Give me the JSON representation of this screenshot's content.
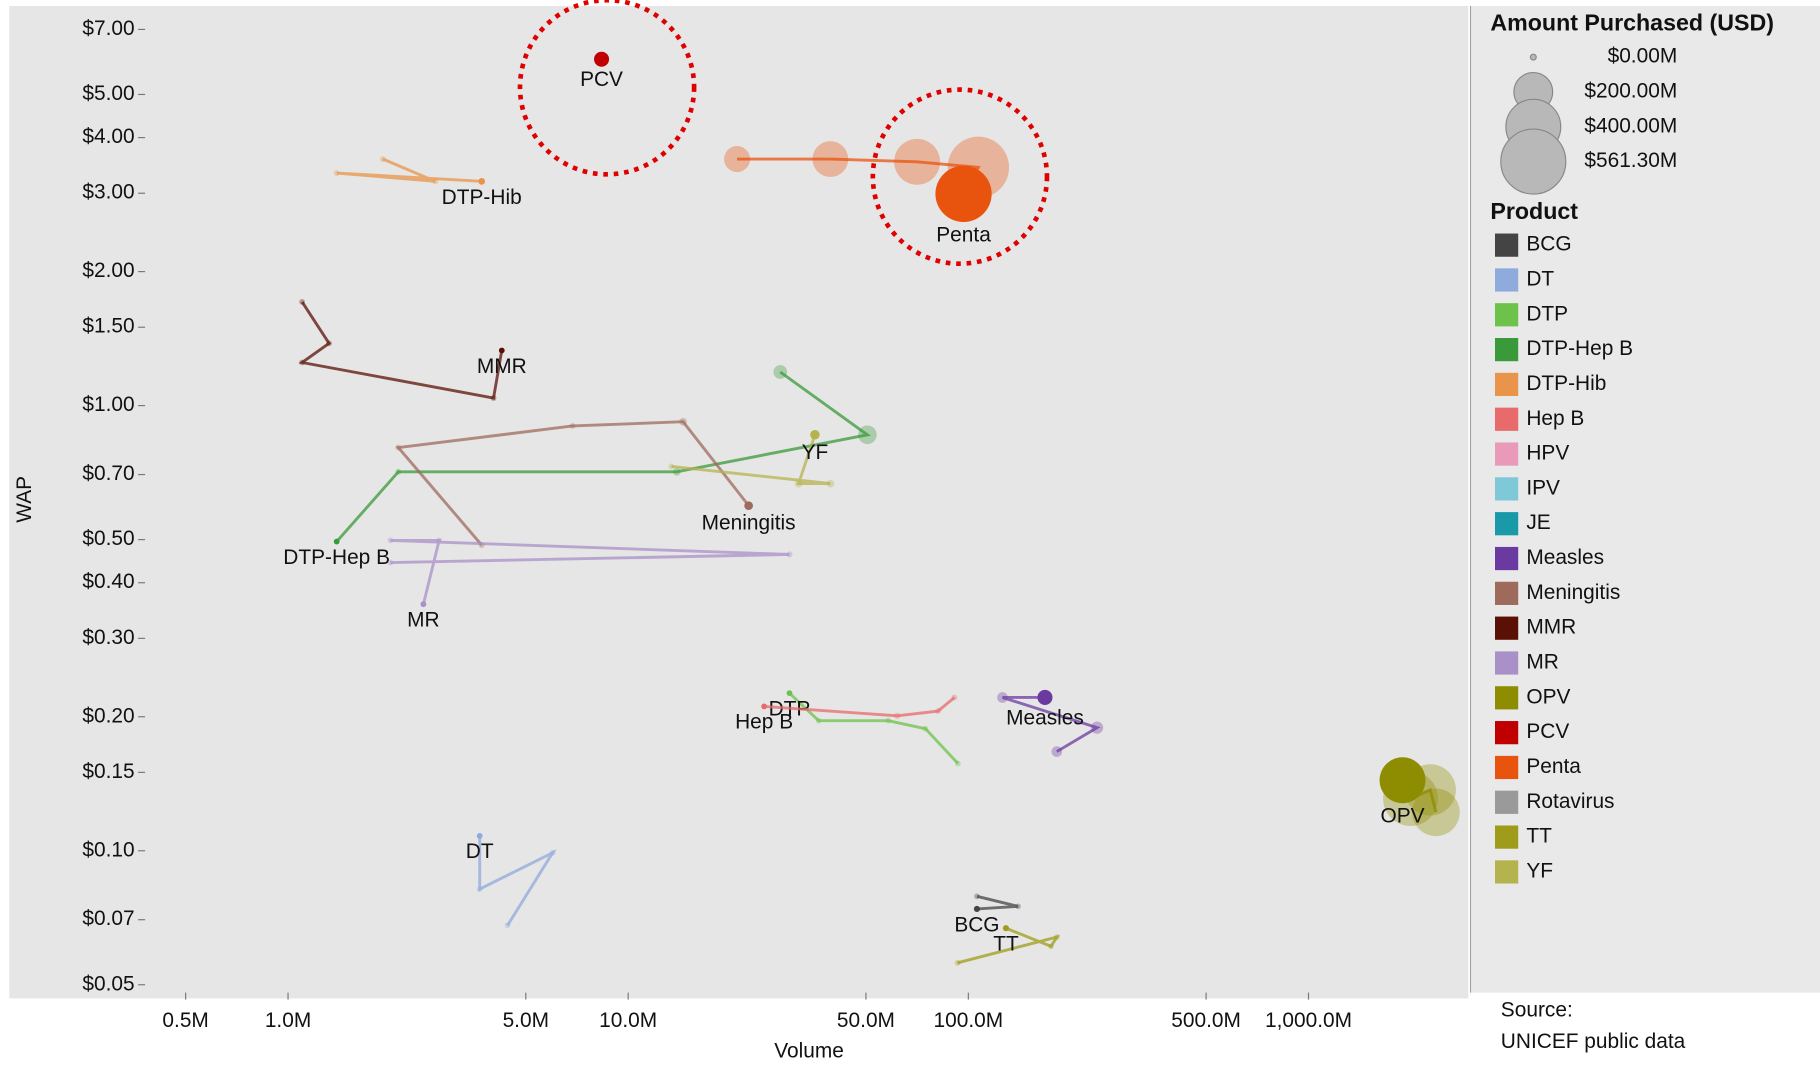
{
  "chart_data": {
    "type": "scatter",
    "x_label": "Volume",
    "y_label": "WAP",
    "x_log": true,
    "y_log": true,
    "xlim": [
      0.38,
      2950
    ],
    "ylim": [
      0.048,
      7.9
    ],
    "xticks": [
      {
        "value": 0.5,
        "label": "0.5M"
      },
      {
        "value": 1,
        "label": "1.0M"
      },
      {
        "value": 5,
        "label": "5.0M"
      },
      {
        "value": 10,
        "label": "10.0M"
      },
      {
        "value": 50,
        "label": "50.0M"
      },
      {
        "value": 100,
        "label": "100.0M"
      },
      {
        "value": 500,
        "label": "500.0M"
      },
      {
        "value": 1000,
        "label": "1,000.0M"
      }
    ],
    "yticks": [
      {
        "value": 0.05,
        "label": "$0.05"
      },
      {
        "value": 0.07,
        "label": "$0.07"
      },
      {
        "value": 0.1,
        "label": "$0.10"
      },
      {
        "value": 0.15,
        "label": "$0.15"
      },
      {
        "value": 0.2,
        "label": "$0.20"
      },
      {
        "value": 0.3,
        "label": "$0.30"
      },
      {
        "value": 0.4,
        "label": "$0.40"
      },
      {
        "value": 0.5,
        "label": "$0.50"
      },
      {
        "value": 0.7,
        "label": "$0.70"
      },
      {
        "value": 1,
        "label": "$1.00"
      },
      {
        "value": 1.5,
        "label": "$1.50"
      },
      {
        "value": 2,
        "label": "$2.00"
      },
      {
        "value": 3,
        "label": "$3.00"
      },
      {
        "value": 4,
        "label": "$4.00"
      },
      {
        "value": 5,
        "label": "$5.00"
      },
      {
        "value": 7,
        "label": "$7.00"
      }
    ],
    "size_legend_title": "Amount Purchased (USD)",
    "size_legend": [
      {
        "value": 0,
        "label": "$0.00M"
      },
      {
        "value": 200,
        "label": "$200.00M"
      },
      {
        "value": 400,
        "label": "$400.00M"
      },
      {
        "value": 561.3,
        "label": "$561.30M"
      }
    ],
    "legend_title": "Product",
    "source": [
      "Source:",
      "UNICEF public data"
    ],
    "series": [
      {
        "name": "BCG",
        "color": "#444444",
        "x": [
          106,
          140,
          106
        ],
        "values": [
          0.079,
          0.075,
          0.074
        ],
        "sizes": [
          4,
          4,
          5
        ]
      },
      {
        "name": "DT",
        "color": "#8faadc",
        "x": [
          4.42,
          6.0,
          3.66,
          3.66
        ],
        "values": [
          0.068,
          0.099,
          0.082,
          0.108
        ],
        "sizes": [
          2,
          2,
          2,
          2
        ]
      },
      {
        "name": "DTP",
        "color": "#6cc24a",
        "x": [
          93.2,
          74.8,
          58.1,
          36.3,
          29.8
        ],
        "values": [
          0.157,
          0.188,
          0.196,
          0.196,
          0.226
        ],
        "sizes": [
          3,
          3,
          3,
          3,
          4
        ]
      },
      {
        "name": "DTP-Hep B",
        "color": "#3a9a3a",
        "x": [
          28,
          50.5,
          13.9,
          2.11,
          1.39
        ],
        "values": [
          1.19,
          0.86,
          0.71,
          0.71,
          0.495
        ],
        "sizes": [
          25,
          46,
          8,
          2,
          2
        ]
      },
      {
        "name": "DTP-Hib",
        "color": "#e8944a",
        "x": [
          1.9,
          2.71,
          1.39,
          3.71
        ],
        "values": [
          3.58,
          3.19,
          3.33,
          3.19
        ],
        "sizes": [
          3,
          5,
          2,
          6
        ]
      },
      {
        "name": "Hep B",
        "color": "#e86a6a",
        "x": [
          91,
          81.5,
          61.8,
          25.1
        ],
        "values": [
          0.221,
          0.206,
          0.201,
          0.211
        ],
        "sizes": [
          3,
          4,
          5,
          4
        ]
      },
      {
        "name": "HPV",
        "color": "#e89ab8",
        "x": [],
        "values": [],
        "sizes": []
      },
      {
        "name": "IPV",
        "color": "#7ec8d8",
        "x": [],
        "values": [],
        "sizes": []
      },
      {
        "name": "JE",
        "color": "#1a9aa8",
        "x": [],
        "values": [],
        "sizes": []
      },
      {
        "name": "Measles",
        "color": "#6b3aa0",
        "x": [
          182,
          239,
          126,
          168
        ],
        "values": [
          0.167,
          0.189,
          0.221,
          0.221
        ],
        "sizes": [
          15,
          20,
          15,
          30
        ]
      },
      {
        "name": "Meningitis",
        "color": "#9e6a5c",
        "x": [
          3.71,
          2.11,
          6.86,
          14.5,
          22.6
        ],
        "values": [
          0.486,
          0.805,
          0.9,
          0.92,
          0.596
        ],
        "sizes": [
          2,
          2,
          4,
          8,
          10
        ]
      },
      {
        "name": "MMR",
        "color": "#5a1005",
        "x": [
          1.1,
          1.32,
          1.1,
          4.02,
          4.25
        ],
        "values": [
          1.71,
          1.38,
          1.25,
          1.04,
          1.33
        ],
        "sizes": [
          2,
          2,
          2,
          4,
          4
        ]
      },
      {
        "name": "MR",
        "color": "#a990c8",
        "x": [
          2.0,
          29.8,
          2.0,
          2.78,
          2.5
        ],
        "values": [
          0.444,
          0.463,
          0.498,
          0.498,
          0.358
        ],
        "sizes": [
          2,
          5,
          2,
          2,
          2
        ]
      },
      {
        "name": "OPV",
        "color": "#8e8c00",
        "x": [
          2370,
          2280,
          1995,
          1890
        ],
        "values": [
          0.122,
          0.137,
          0.131,
          0.144
        ],
        "sizes": [
          300,
          350,
          400,
          280
        ]
      },
      {
        "name": "PCV",
        "color": "#c00000",
        "x": [
          8.35
        ],
        "values": [
          6.0
        ],
        "sizes": [
          30
        ]
      },
      {
        "name": "Penta",
        "color": "#e8530e",
        "x": [
          20.9,
          39.3,
          70.7,
          107,
          96.8
        ],
        "values": [
          3.58,
          3.58,
          3.53,
          3.43,
          2.99
        ],
        "sizes": [
          90,
          170,
          280,
          500,
          420
        ]
      },
      {
        "name": "Rotavirus",
        "color": "#9a9a9a",
        "x": [],
        "values": [],
        "sizes": []
      },
      {
        "name": "TT",
        "color": "#9e9c1a",
        "x": [
          93,
          182,
          175,
          129
        ],
        "values": [
          0.056,
          0.064,
          0.061,
          0.067
        ],
        "sizes": [
          3,
          4,
          4,
          5
        ]
      },
      {
        "name": "YF",
        "color": "#b5b34e",
        "x": [
          13.4,
          39.3,
          31.7,
          35.4
        ],
        "values": [
          0.73,
          0.668,
          0.668,
          0.86
        ],
        "sizes": [
          4,
          8,
          8,
          12
        ]
      }
    ]
  }
}
